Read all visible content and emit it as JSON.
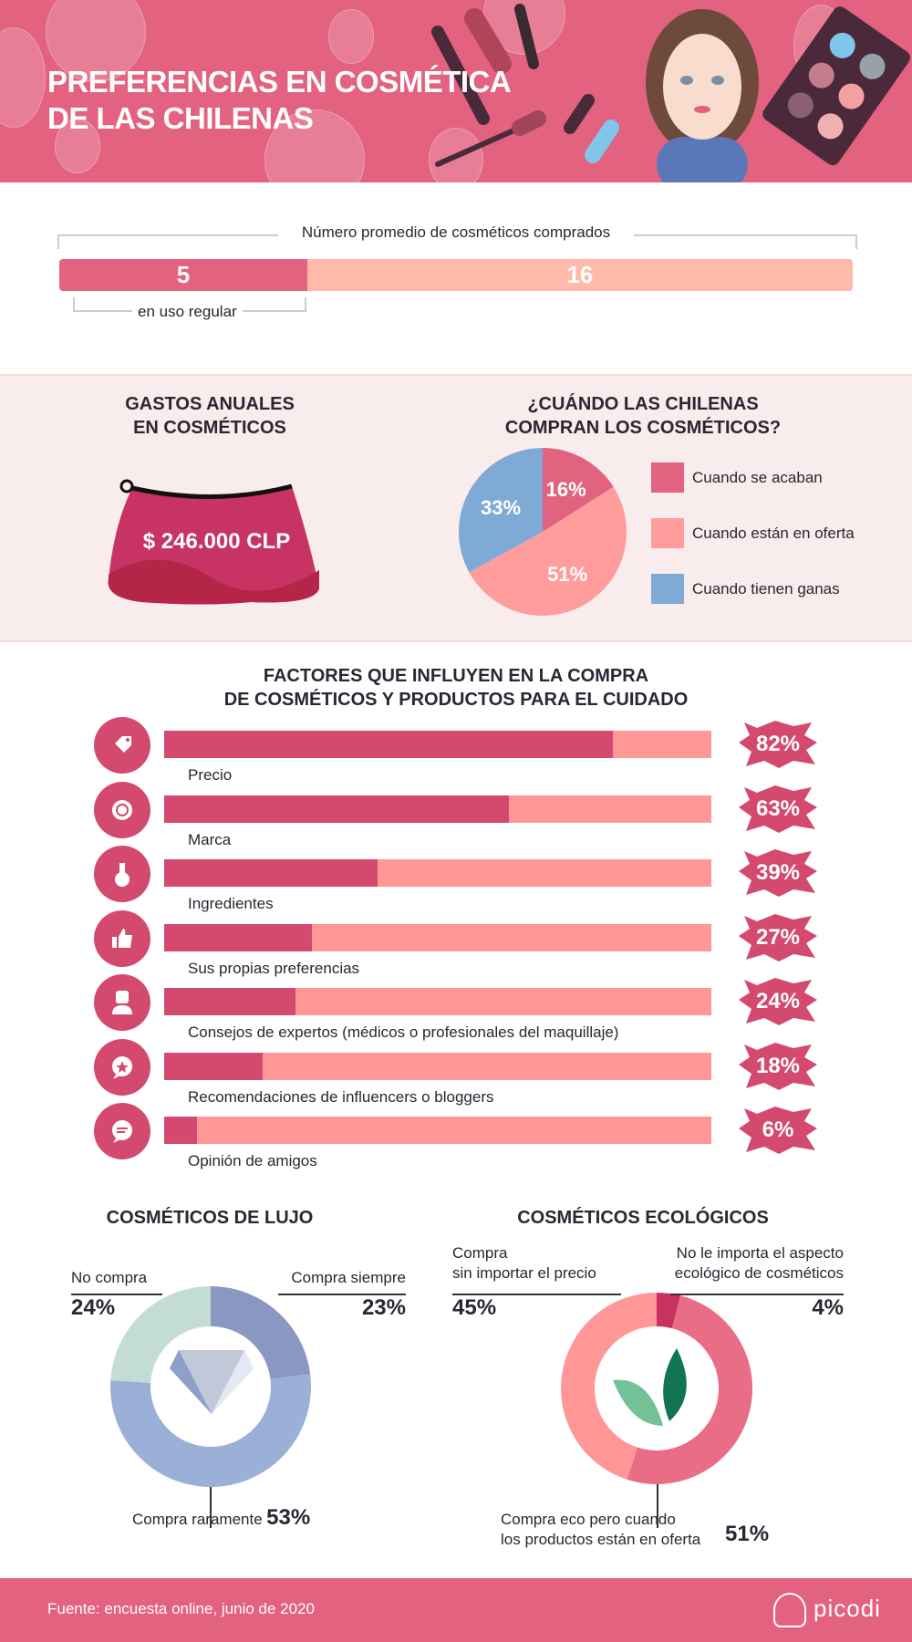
{
  "header": {
    "title_line1": "PREFERENCIAS EN COSMÉTICA",
    "title_line2": "DE LAS CHILENAS"
  },
  "average": {
    "title": "Número promedio de cosméticos comprados",
    "regular_value": "5",
    "total_value": "16",
    "regular_label": "en uso regular",
    "regular_fraction": 0.3125
  },
  "spending": {
    "title_line1": "GASTOS ANUALES",
    "title_line2": "EN COSMÉTICOS",
    "amount": "$ 246.000 CLP"
  },
  "when": {
    "title_line1": "¿CUÁNDO LAS CHILENAS",
    "title_line2": "COMPRAN LOS COSMÉTICOS?"
  },
  "factors": {
    "title_line1": "FACTORES QUE INFLUYEN EN LA COMPRA",
    "title_line2": "DE COSMÉTICOS Y PRODUCTOS PARA EL CUIDADO",
    "items": [
      {
        "label": "Precio",
        "value": 82,
        "pct": "82%",
        "icon": "price-tag-icon"
      },
      {
        "label": "Marca",
        "value": 63,
        "pct": "63%",
        "icon": "brand-badge-icon"
      },
      {
        "label": "Ingredientes",
        "value": 39,
        "pct": "39%",
        "icon": "flask-icon"
      },
      {
        "label": "Sus propias preferencias",
        "value": 27,
        "pct": "27%",
        "icon": "thumbs-up-icon"
      },
      {
        "label": "Consejos de expertos (médicos o profesionales del maquillaje)",
        "value": 24,
        "pct": "24%",
        "icon": "doctor-icon"
      },
      {
        "label": "Recomendaciones de influencers o bloggers",
        "value": 18,
        "pct": "18%",
        "icon": "star-bubble-icon"
      },
      {
        "label": "Opinión de amigos",
        "value": 6,
        "pct": "6%",
        "icon": "chat-bubble-icon"
      }
    ]
  },
  "luxury": {
    "title": "COSMÉTICOS DE LUJO"
  },
  "eco": {
    "title": "COSMÉTICOS ECOLÓGICOS"
  },
  "chart_data": [
    {
      "type": "pie",
      "title": "¿CUÁNDO LAS CHILENAS COMPRAN LOS COSMÉTICOS?",
      "legend": "right",
      "slices": [
        {
          "label": "Cuando se acaban",
          "value": 16,
          "pct": "16%",
          "color": "#e2637f"
        },
        {
          "label": "Cuando están en oferta",
          "value": 51,
          "pct": "51%",
          "color": "#ff9d9d"
        },
        {
          "label": "Cuando tienen ganas",
          "value": 33,
          "pct": "33%",
          "color": "#7faad6"
        }
      ]
    },
    {
      "type": "pie",
      "subtype": "donut",
      "title": "COSMÉTICOS DE LUJO",
      "slices": [
        {
          "label": "Compra siempre",
          "value": 23,
          "pct": "23%",
          "color": "#8a97c0"
        },
        {
          "label": "Compra raramente",
          "value": 53,
          "pct": "53%",
          "color": "#9ab0d6"
        },
        {
          "label": "No compra",
          "value": 24,
          "pct": "24%",
          "color": "#c3ddd6"
        }
      ]
    },
    {
      "type": "pie",
      "subtype": "donut",
      "title": "COSMÉTICOS ECOLÓGICOS",
      "slices": [
        {
          "label_line1": "No le importa el aspecto",
          "label_line2": "ecológico de cosméticos",
          "value": 4,
          "pct": "4%",
          "color": "#c8325f"
        },
        {
          "label_line1": "Compra eco pero cuando",
          "label_line2": "los productos están en oferta",
          "value": 51,
          "pct": "51%",
          "color": "#e86d85"
        },
        {
          "label_line1": "Compra",
          "label_line2": "sin importar el precio",
          "value": 45,
          "pct": "45%",
          "color": "#ff9797"
        }
      ]
    }
  ],
  "footer": {
    "source": "Fuente: encuesta online, junio de 2020",
    "brand": "picodi"
  }
}
